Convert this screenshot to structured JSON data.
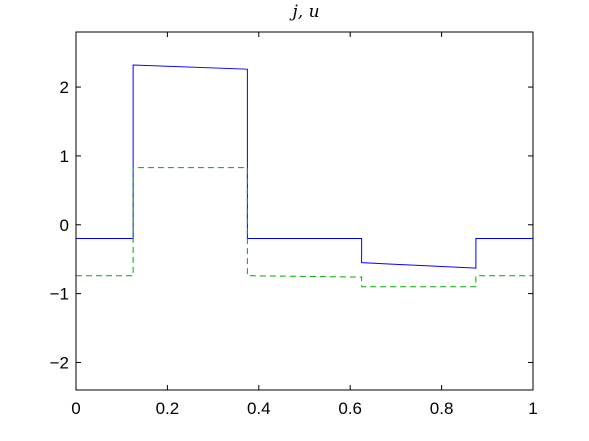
{
  "chart_data": {
    "type": "line",
    "title": "j, u",
    "xlabel": "",
    "ylabel": "",
    "xlim": [
      0,
      1
    ],
    "ylim": [
      -2.4,
      2.8
    ],
    "xticks": [
      0,
      0.2,
      0.4,
      0.6,
      0.8,
      1
    ],
    "xtick_labels": [
      "0",
      "0.2",
      "0.4",
      "0.6",
      "0.8",
      "1"
    ],
    "yticks": [
      -2,
      -1,
      0,
      1,
      2
    ],
    "ytick_labels": [
      "−2",
      "−1",
      "0",
      "1",
      "2"
    ],
    "grid": false,
    "series": [
      {
        "color": "#0000ff",
        "style": "solid",
        "x": [
          0,
          0.125,
          0.125,
          0.375,
          0.375,
          0.625,
          0.625,
          0.875,
          0.875,
          1
        ],
        "y": [
          -0.2,
          -0.2,
          2.32,
          2.26,
          -0.2,
          -0.2,
          -0.55,
          -0.63,
          -0.2,
          -0.2
        ]
      },
      {
        "color": "#00aa00",
        "style": "dashed",
        "x": [
          0,
          0.125,
          0.125,
          0.375,
          0.375,
          0.625,
          0.625,
          0.875,
          0.875,
          1
        ],
        "y": [
          -0.74,
          -0.74,
          0.83,
          0.83,
          -0.74,
          -0.76,
          -0.9,
          -0.9,
          -0.74,
          -0.74
        ]
      }
    ]
  }
}
